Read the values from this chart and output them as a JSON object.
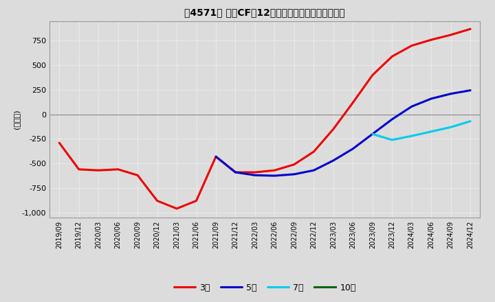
{
  "title": "【4571】 投資CFの12か月移動合計の平均値の推移",
  "ylabel": "(百万円)",
  "ylim": [
    -1050,
    950
  ],
  "yticks": [
    -1000,
    -750,
    -500,
    -250,
    0,
    250,
    500,
    750
  ],
  "background_color": "#dcdcdc",
  "grid_color": "#ffffff",
  "legend_labels": [
    "3年",
    "5年",
    "7年",
    "10年"
  ],
  "legend_colors": [
    "#ee0000",
    "#0000cc",
    "#00ccee",
    "#006600"
  ],
  "x_labels": [
    "2019/09",
    "2019/12",
    "2020/03",
    "2020/06",
    "2020/09",
    "2020/12",
    "2021/03",
    "2021/06",
    "2021/09",
    "2021/12",
    "2022/03",
    "2022/06",
    "2022/09",
    "2022/12",
    "2023/03",
    "2023/06",
    "2023/09",
    "2023/12",
    "2024/03",
    "2024/06",
    "2024/09",
    "2024/12"
  ],
  "series_3y": [
    -290,
    -560,
    -570,
    -560,
    -620,
    -880,
    -960,
    -880,
    -430,
    -590,
    -590,
    -570,
    -510,
    -380,
    -150,
    120,
    400,
    590,
    700,
    760,
    810,
    870
  ],
  "series_5y": [
    null,
    null,
    null,
    null,
    null,
    null,
    null,
    null,
    -430,
    -590,
    -620,
    -625,
    -610,
    -570,
    -470,
    -350,
    -200,
    -50,
    80,
    160,
    210,
    245
  ],
  "series_7y": [
    null,
    null,
    null,
    null,
    null,
    null,
    null,
    null,
    null,
    null,
    null,
    null,
    null,
    null,
    null,
    null,
    -200,
    -260,
    -220,
    -175,
    -130,
    -70
  ],
  "series_10y": [
    null,
    null,
    null,
    null,
    null,
    null,
    null,
    null,
    null,
    null,
    null,
    null,
    null,
    null,
    null,
    null,
    null,
    null,
    null,
    null,
    null,
    null
  ]
}
